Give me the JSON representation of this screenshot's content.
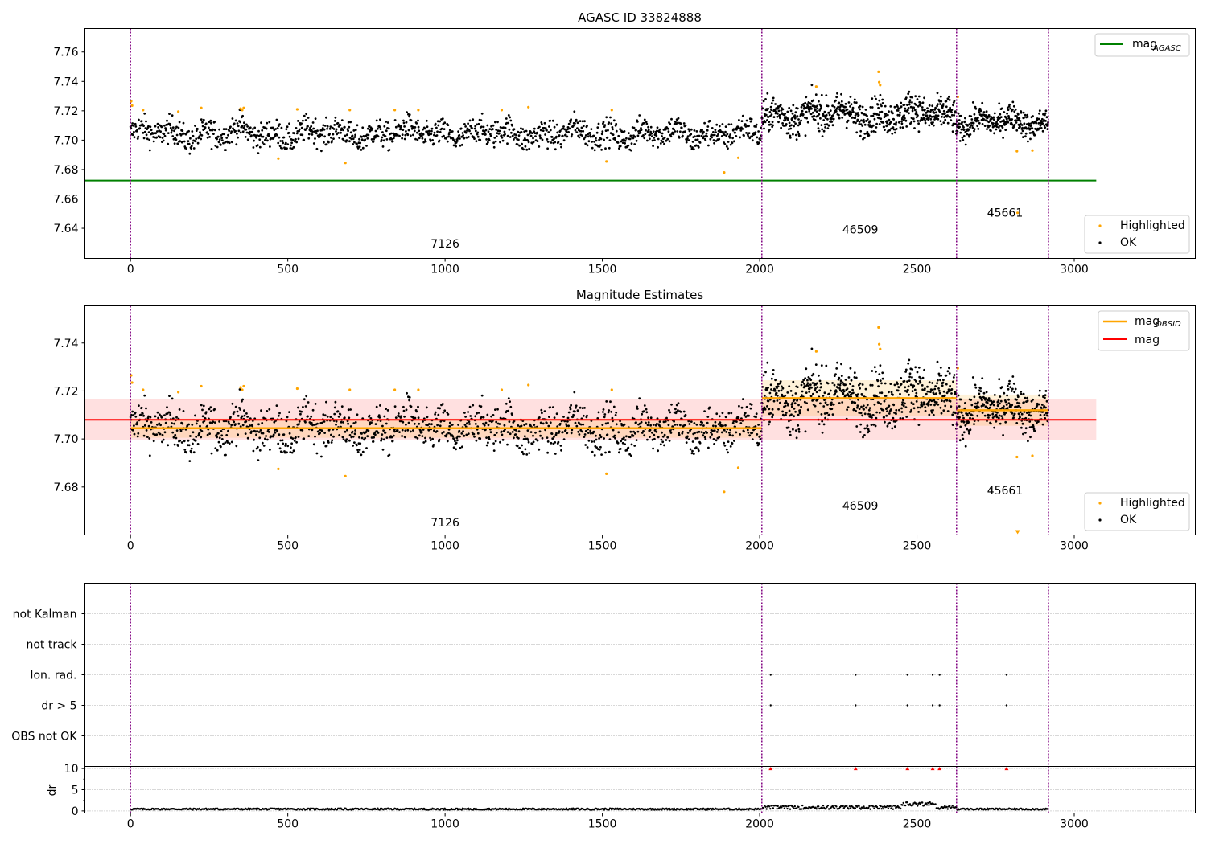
{
  "chart_data": [
    {
      "type": "scatter",
      "title": "AGASC ID 33824888",
      "xlim": [
        -145,
        3385
      ],
      "ylim": [
        7.6195,
        7.776
      ],
      "yticks": [
        7.64,
        7.66,
        7.68,
        7.7,
        7.72,
        7.74,
        7.76
      ],
      "xticks": [
        0,
        500,
        1000,
        1500,
        2000,
        2500,
        3000
      ],
      "obs_boundaries": [
        0,
        2007,
        2626,
        2918
      ],
      "obs_labels": [
        {
          "text": "7126",
          "x": 1000,
          "y": 7.627
        },
        {
          "text": "46509",
          "x": 2320,
          "y": 7.6365
        },
        {
          "text": "45661",
          "x": 2780,
          "y": 7.648
        }
      ],
      "reference_lines": [
        {
          "name": "mag",
          "subscript": "AGASC",
          "color": "#008000",
          "y": 7.6725,
          "x": [
            -145,
            3070
          ]
        }
      ],
      "series": [
        {
          "name": "OK",
          "color": "#000000",
          "segments": [
            {
              "x": [
                0,
                2007
              ],
              "mean": 7.7045,
              "spread": 0.011
            },
            {
              "x": [
                2007,
                2626
              ],
              "mean": 7.7175,
              "spread": 0.014
            },
            {
              "x": [
                2626,
                2918
              ],
              "mean": 7.7125,
              "spread": 0.011
            }
          ],
          "n_points": 2900
        },
        {
          "name": "Highlighted",
          "color": "#ffa500",
          "points": [
            [
              2,
              7.7265
            ],
            [
              5,
              7.7235
            ],
            [
              40,
              7.7205
            ],
            [
              152,
              7.7195
            ],
            [
              225,
              7.722
            ],
            [
              350,
              7.7215
            ],
            [
              355,
              7.7205
            ],
            [
              360,
              7.722
            ],
            [
              470,
              7.6875
            ],
            [
              530,
              7.721
            ],
            [
              683,
              7.6845
            ],
            [
              697,
              7.7205
            ],
            [
              840,
              7.7205
            ],
            [
              915,
              7.7205
            ],
            [
              1180,
              7.7205
            ],
            [
              1265,
              7.7225
            ],
            [
              1513,
              7.6855
            ],
            [
              1530,
              7.7205
            ],
            [
              1887,
              7.678
            ],
            [
              1932,
              7.688
            ],
            [
              2180,
              7.7365
            ],
            [
              2378,
              7.7465
            ],
            [
              2380,
              7.7395
            ],
            [
              2383,
              7.7375
            ],
            [
              2630,
              7.7295
            ],
            [
              2818,
              7.6925
            ],
            [
              2867,
              7.693
            ],
            [
              2820,
              7.6505
            ]
          ]
        }
      ],
      "legends": [
        {
          "position": "upper right",
          "entries": [
            "mag_AGASC"
          ]
        },
        {
          "position": "lower right",
          "entries": [
            "Highlighted",
            "OK"
          ]
        }
      ]
    },
    {
      "type": "scatter",
      "title": "Magnitude Estimates",
      "xlim": [
        -145,
        3385
      ],
      "ylim": [
        7.66,
        7.7555
      ],
      "yticks": [
        7.68,
        7.7,
        7.72,
        7.74
      ],
      "xticks": [
        0,
        500,
        1000,
        1500,
        2000,
        2500,
        3000
      ],
      "obs_boundaries": [
        0,
        2007,
        2626,
        2918
      ],
      "obs_labels": [
        {
          "text": "7126",
          "x": 1000,
          "y": 7.6635
        },
        {
          "text": "46509",
          "x": 2320,
          "y": 7.6705
        },
        {
          "text": "45661",
          "x": 2780,
          "y": 7.677
        }
      ],
      "reference_lines": [
        {
          "name": "mag",
          "color": "#ff0000",
          "y": 7.708,
          "x": [
            -145,
            3070
          ],
          "band": [
            7.6995,
            7.7165
          ]
        }
      ],
      "obsid_lines": [
        {
          "x": [
            0,
            2007
          ],
          "y": 7.7045,
          "band": [
            7.7005,
            7.7085
          ]
        },
        {
          "x": [
            2007,
            2626
          ],
          "y": 7.717,
          "band": [
            7.7095,
            7.7245
          ]
        },
        {
          "x": [
            2626,
            2918
          ],
          "y": 7.712,
          "band": [
            7.7055,
            7.7185
          ]
        }
      ],
      "series": [
        {
          "name": "OK",
          "color": "#000000",
          "n_points": 2900
        },
        {
          "name": "Highlighted",
          "color": "#ffa500",
          "offscale_marker_x": 2820
        }
      ],
      "legends": [
        {
          "position": "upper right",
          "entries": [
            "mag_OBSID",
            "mag"
          ]
        },
        {
          "position": "lower right",
          "entries": [
            "Highlighted",
            "OK"
          ]
        }
      ]
    },
    {
      "type": "scatter",
      "title": "",
      "xlim": [
        -145,
        3385
      ],
      "flag_categories": [
        "OBS not OK",
        "dr > 5",
        "Ion. rad.",
        "not track",
        "not Kalman"
      ],
      "flags": [
        {
          "category": "Ion. rad.",
          "x": [
            2035,
            2305,
            2470,
            2550,
            2572,
            2785
          ]
        },
        {
          "category": "dr > 5",
          "x": [
            2035,
            2305,
            2470,
            2550,
            2572,
            2785
          ]
        }
      ],
      "obs_boundaries": [
        0,
        2007,
        2626,
        2918
      ]
    },
    {
      "type": "line",
      "title": "",
      "ylabel": "dr",
      "xlim": [
        -145,
        3385
      ],
      "ylim": [
        -0.5,
        10.5
      ],
      "yticks": [
        0,
        5,
        10
      ],
      "xticks": [
        0,
        500,
        1000,
        1500,
        2000,
        2500,
        3000
      ],
      "clipped_markers_x": [
        2035,
        2305,
        2470,
        2550,
        2572,
        2785
      ],
      "obs_boundaries": [
        0,
        2007,
        2626,
        2918
      ]
    }
  ]
}
